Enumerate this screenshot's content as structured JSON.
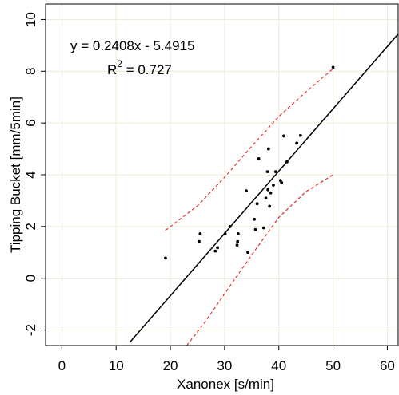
{
  "chart_data": {
    "type": "scatter",
    "xlabel": "Xanonex [s/min]",
    "ylabel": "Tipping Bucket [mm/5min]",
    "xlim": [
      -3,
      62
    ],
    "ylim": [
      -2.6,
      10.6
    ],
    "x_ticks": [
      0,
      10,
      20,
      30,
      40,
      50,
      60
    ],
    "y_ticks": [
      -2,
      0,
      2,
      4,
      6,
      8,
      10
    ],
    "x_tick_labels": [
      "0",
      "10",
      "20",
      "30",
      "40",
      "50",
      "60"
    ],
    "y_tick_labels": [
      "-2",
      "0",
      "2",
      "4",
      "6",
      "8",
      "10"
    ],
    "grid": true,
    "zero_line": true,
    "annotation": {
      "equation": "y = 0.2408x - 5.4915",
      "r2_label": "R",
      "r2_sup": "2",
      "r2_value": " = 0.727"
    },
    "points": [
      {
        "x": 19.1,
        "y": 0.78
      },
      {
        "x": 25.3,
        "y": 1.42
      },
      {
        "x": 25.5,
        "y": 1.72
      },
      {
        "x": 28.3,
        "y": 1.05
      },
      {
        "x": 28.7,
        "y": 1.18
      },
      {
        "x": 30.1,
        "y": 1.72
      },
      {
        "x": 31.0,
        "y": 2.0
      },
      {
        "x": 32.3,
        "y": 1.28
      },
      {
        "x": 32.4,
        "y": 1.42
      },
      {
        "x": 32.5,
        "y": 1.72
      },
      {
        "x": 34.0,
        "y": 3.38
      },
      {
        "x": 34.3,
        "y": 1.0
      },
      {
        "x": 35.5,
        "y": 2.28
      },
      {
        "x": 35.7,
        "y": 1.88
      },
      {
        "x": 36.0,
        "y": 2.88
      },
      {
        "x": 36.3,
        "y": 4.62
      },
      {
        "x": 37.2,
        "y": 1.95
      },
      {
        "x": 37.6,
        "y": 3.1
      },
      {
        "x": 37.9,
        "y": 4.12
      },
      {
        "x": 38.0,
        "y": 3.42
      },
      {
        "x": 38.1,
        "y": 5.0
      },
      {
        "x": 38.3,
        "y": 2.78
      },
      {
        "x": 38.5,
        "y": 3.3
      },
      {
        "x": 39.0,
        "y": 3.6
      },
      {
        "x": 39.4,
        "y": 4.12
      },
      {
        "x": 40.3,
        "y": 3.78
      },
      {
        "x": 40.5,
        "y": 3.7
      },
      {
        "x": 40.9,
        "y": 5.5
      },
      {
        "x": 41.5,
        "y": 4.5
      },
      {
        "x": 43.3,
        "y": 5.22
      },
      {
        "x": 44.0,
        "y": 5.52
      },
      {
        "x": 50.0,
        "y": 8.15
      }
    ],
    "regression": {
      "slope": 0.2408,
      "intercept": -5.4915,
      "x_range": [
        12.5,
        62
      ]
    },
    "upper_band": [
      [
        19.1,
        1.85
      ],
      [
        25,
        2.8
      ],
      [
        30,
        3.9
      ],
      [
        35,
        5.1
      ],
      [
        40,
        6.25
      ],
      [
        45,
        7.2
      ],
      [
        50,
        8.1
      ]
    ],
    "lower_band": [
      [
        23,
        -2.6
      ],
      [
        26,
        -1.8
      ],
      [
        30,
        -0.6
      ],
      [
        35,
        0.9
      ],
      [
        40,
        2.35
      ],
      [
        45,
        3.35
      ],
      [
        50,
        4.0
      ]
    ],
    "colors": {
      "points": "#000000",
      "fit_line": "#000000",
      "band": "#e8312a",
      "grid": "#ececd4",
      "zero_line": "#bbbbbb"
    }
  }
}
